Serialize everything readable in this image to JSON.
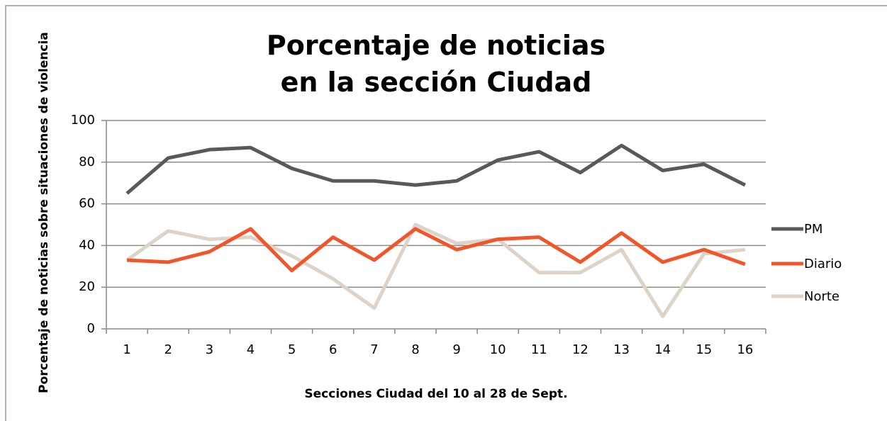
{
  "chart_data": {
    "type": "line",
    "title": "Porcentaje de noticias en la sección Ciudad",
    "x_label": "Secciones Ciudad del 10 al 28 de Sept.",
    "y_label": "Porcentaje de noticias sobre situaciones de violencia",
    "categories": [
      "1",
      "2",
      "3",
      "4",
      "5",
      "6",
      "7",
      "8",
      "9",
      "10",
      "11",
      "12",
      "13",
      "14",
      "15",
      "16"
    ],
    "series": [
      {
        "name": "PM",
        "color": "#595959",
        "values": [
          65,
          82,
          86,
          87,
          77,
          71,
          71,
          69,
          71,
          81,
          85,
          75,
          88,
          76,
          79,
          69
        ]
      },
      {
        "name": "Diario",
        "color": "#f1562a",
        "values": [
          33,
          32,
          37,
          48,
          28,
          44,
          33,
          48,
          38,
          43,
          44,
          32,
          46,
          32,
          38,
          31
        ]
      },
      {
        "name": "Norte",
        "color": "#ddd3c6",
        "values": [
          33,
          47,
          43,
          44,
          35,
          24,
          10,
          50,
          41,
          43,
          27,
          27,
          38,
          6,
          36,
          38
        ]
      }
    ],
    "ylim": [
      0,
      100
    ],
    "yticks": [
      0,
      20,
      40,
      60,
      80,
      100
    ],
    "grid": true,
    "legend": "right"
  }
}
